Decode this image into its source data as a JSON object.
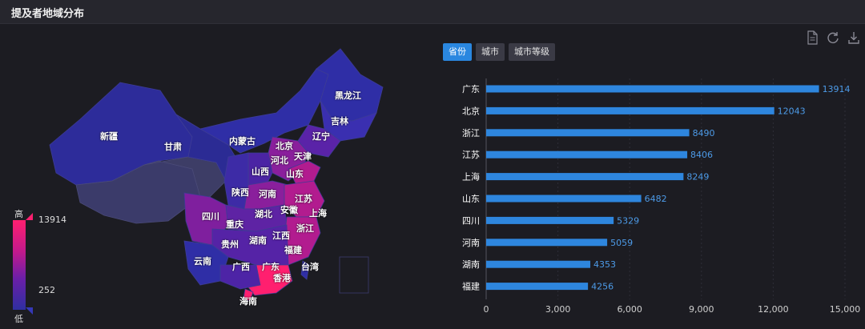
{
  "header": {
    "title": "提及者地域分布"
  },
  "tabs": [
    {
      "label": "省份",
      "active": true
    },
    {
      "label": "城市",
      "active": false
    },
    {
      "label": "城市等级",
      "active": false
    }
  ],
  "toolbar": {
    "icons": [
      "document-icon",
      "refresh-icon",
      "download-icon"
    ]
  },
  "legend": {
    "high": "高",
    "low": "低",
    "max": "13914",
    "min": "252"
  },
  "map_labels": [
    {
      "name": "新疆"
    },
    {
      "name": "甘肃"
    },
    {
      "name": "内蒙古"
    },
    {
      "name": "黑龙江"
    },
    {
      "name": "吉林"
    },
    {
      "name": "辽宁"
    },
    {
      "name": "北京"
    },
    {
      "name": "天津"
    },
    {
      "name": "河北"
    },
    {
      "name": "山西"
    },
    {
      "name": "山东"
    },
    {
      "name": "陕西"
    },
    {
      "name": "河南"
    },
    {
      "name": "江苏"
    },
    {
      "name": "安徽"
    },
    {
      "name": "上海"
    },
    {
      "name": "四川"
    },
    {
      "name": "重庆"
    },
    {
      "name": "湖北"
    },
    {
      "name": "浙江"
    },
    {
      "name": "贵州"
    },
    {
      "name": "湖南"
    },
    {
      "name": "江西"
    },
    {
      "name": "福建"
    },
    {
      "name": "云南"
    },
    {
      "name": "广西"
    },
    {
      "name": "广东"
    },
    {
      "name": "台湾"
    },
    {
      "name": "香港"
    },
    {
      "name": "海南"
    }
  ],
  "chart_data": {
    "type": "bar",
    "orientation": "horizontal",
    "categories": [
      "广东",
      "北京",
      "浙江",
      "江苏",
      "上海",
      "山东",
      "四川",
      "河南",
      "湖南",
      "福建"
    ],
    "values": [
      13914,
      12043,
      8490,
      8406,
      8249,
      6482,
      5329,
      5059,
      4353,
      4256
    ],
    "xlim": [
      0,
      15000
    ],
    "xticks": [
      0,
      3000,
      6000,
      9000,
      12000,
      15000
    ],
    "xtick_labels": [
      "0",
      "3,000",
      "6,000",
      "9,000",
      "12,000",
      "15,000"
    ],
    "bar_color": "#2e86de",
    "grid": true
  }
}
